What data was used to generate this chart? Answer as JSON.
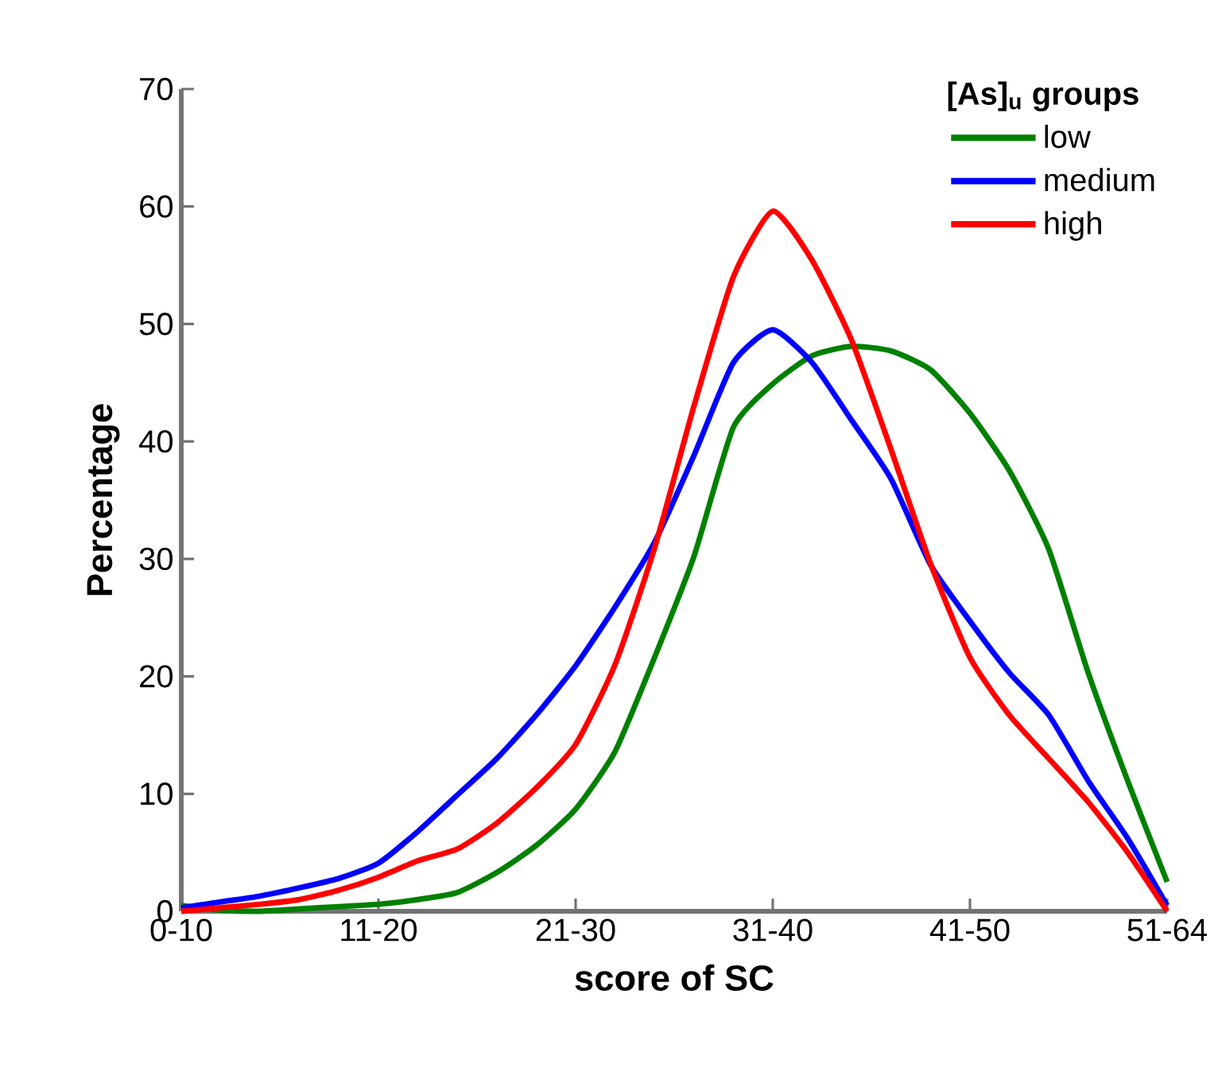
{
  "chart_data": {
    "type": "line",
    "xlabel": "score of SC",
    "ylabel": "Percentage",
    "legend_title": "[As]$_{u}$ groups",
    "legend": "top right",
    "line_style": "solid",
    "categories": [
      "0-10",
      null,
      null,
      null,
      null,
      "11-20",
      null,
      null,
      null,
      null,
      "21-30",
      null,
      null,
      null,
      null,
      "31-40",
      null,
      null,
      null,
      null,
      "41-50",
      null,
      null,
      null,
      null,
      "51-64"
    ],
    "ylim": [
      0,
      70
    ],
    "yticks": [
      0,
      10,
      20,
      30,
      40,
      50,
      60,
      70
    ],
    "series": [
      {
        "name": "low",
        "color": "#008000",
        "values": [
          0.5,
          0.1,
          0,
          0.2,
          0.4,
          0.6,
          1,
          1.6,
          3.3,
          5.6,
          8.7,
          13.6,
          21.6,
          30.2,
          41.2,
          44.9,
          47.3,
          48.1,
          47.7,
          46.1,
          42.4,
          37.5,
          30.8,
          20.3,
          11.1,
          2.5
        ]
      },
      {
        "name": "medium",
        "color": "#0000ff",
        "values": [
          0.3,
          0.8,
          1.3,
          2,
          2.8,
          4.1,
          6.8,
          9.9,
          13,
          16.7,
          20.9,
          25.9,
          31.4,
          38.8,
          46.7,
          49.5,
          46.7,
          41.8,
          36.8,
          29.5,
          24.7,
          20.3,
          16.7,
          11.1,
          6.2,
          0.5
        ]
      },
      {
        "name": "high",
        "color": "#ff0000",
        "values": [
          0,
          0.3,
          0.6,
          1,
          1.8,
          2.9,
          4.3,
          5.3,
          7.5,
          10.5,
          14.2,
          21,
          30.9,
          43,
          54,
          59.6,
          55.4,
          48.6,
          39.3,
          29.6,
          21.6,
          16.7,
          13,
          9.3,
          5,
          0
        ]
      }
    ]
  }
}
